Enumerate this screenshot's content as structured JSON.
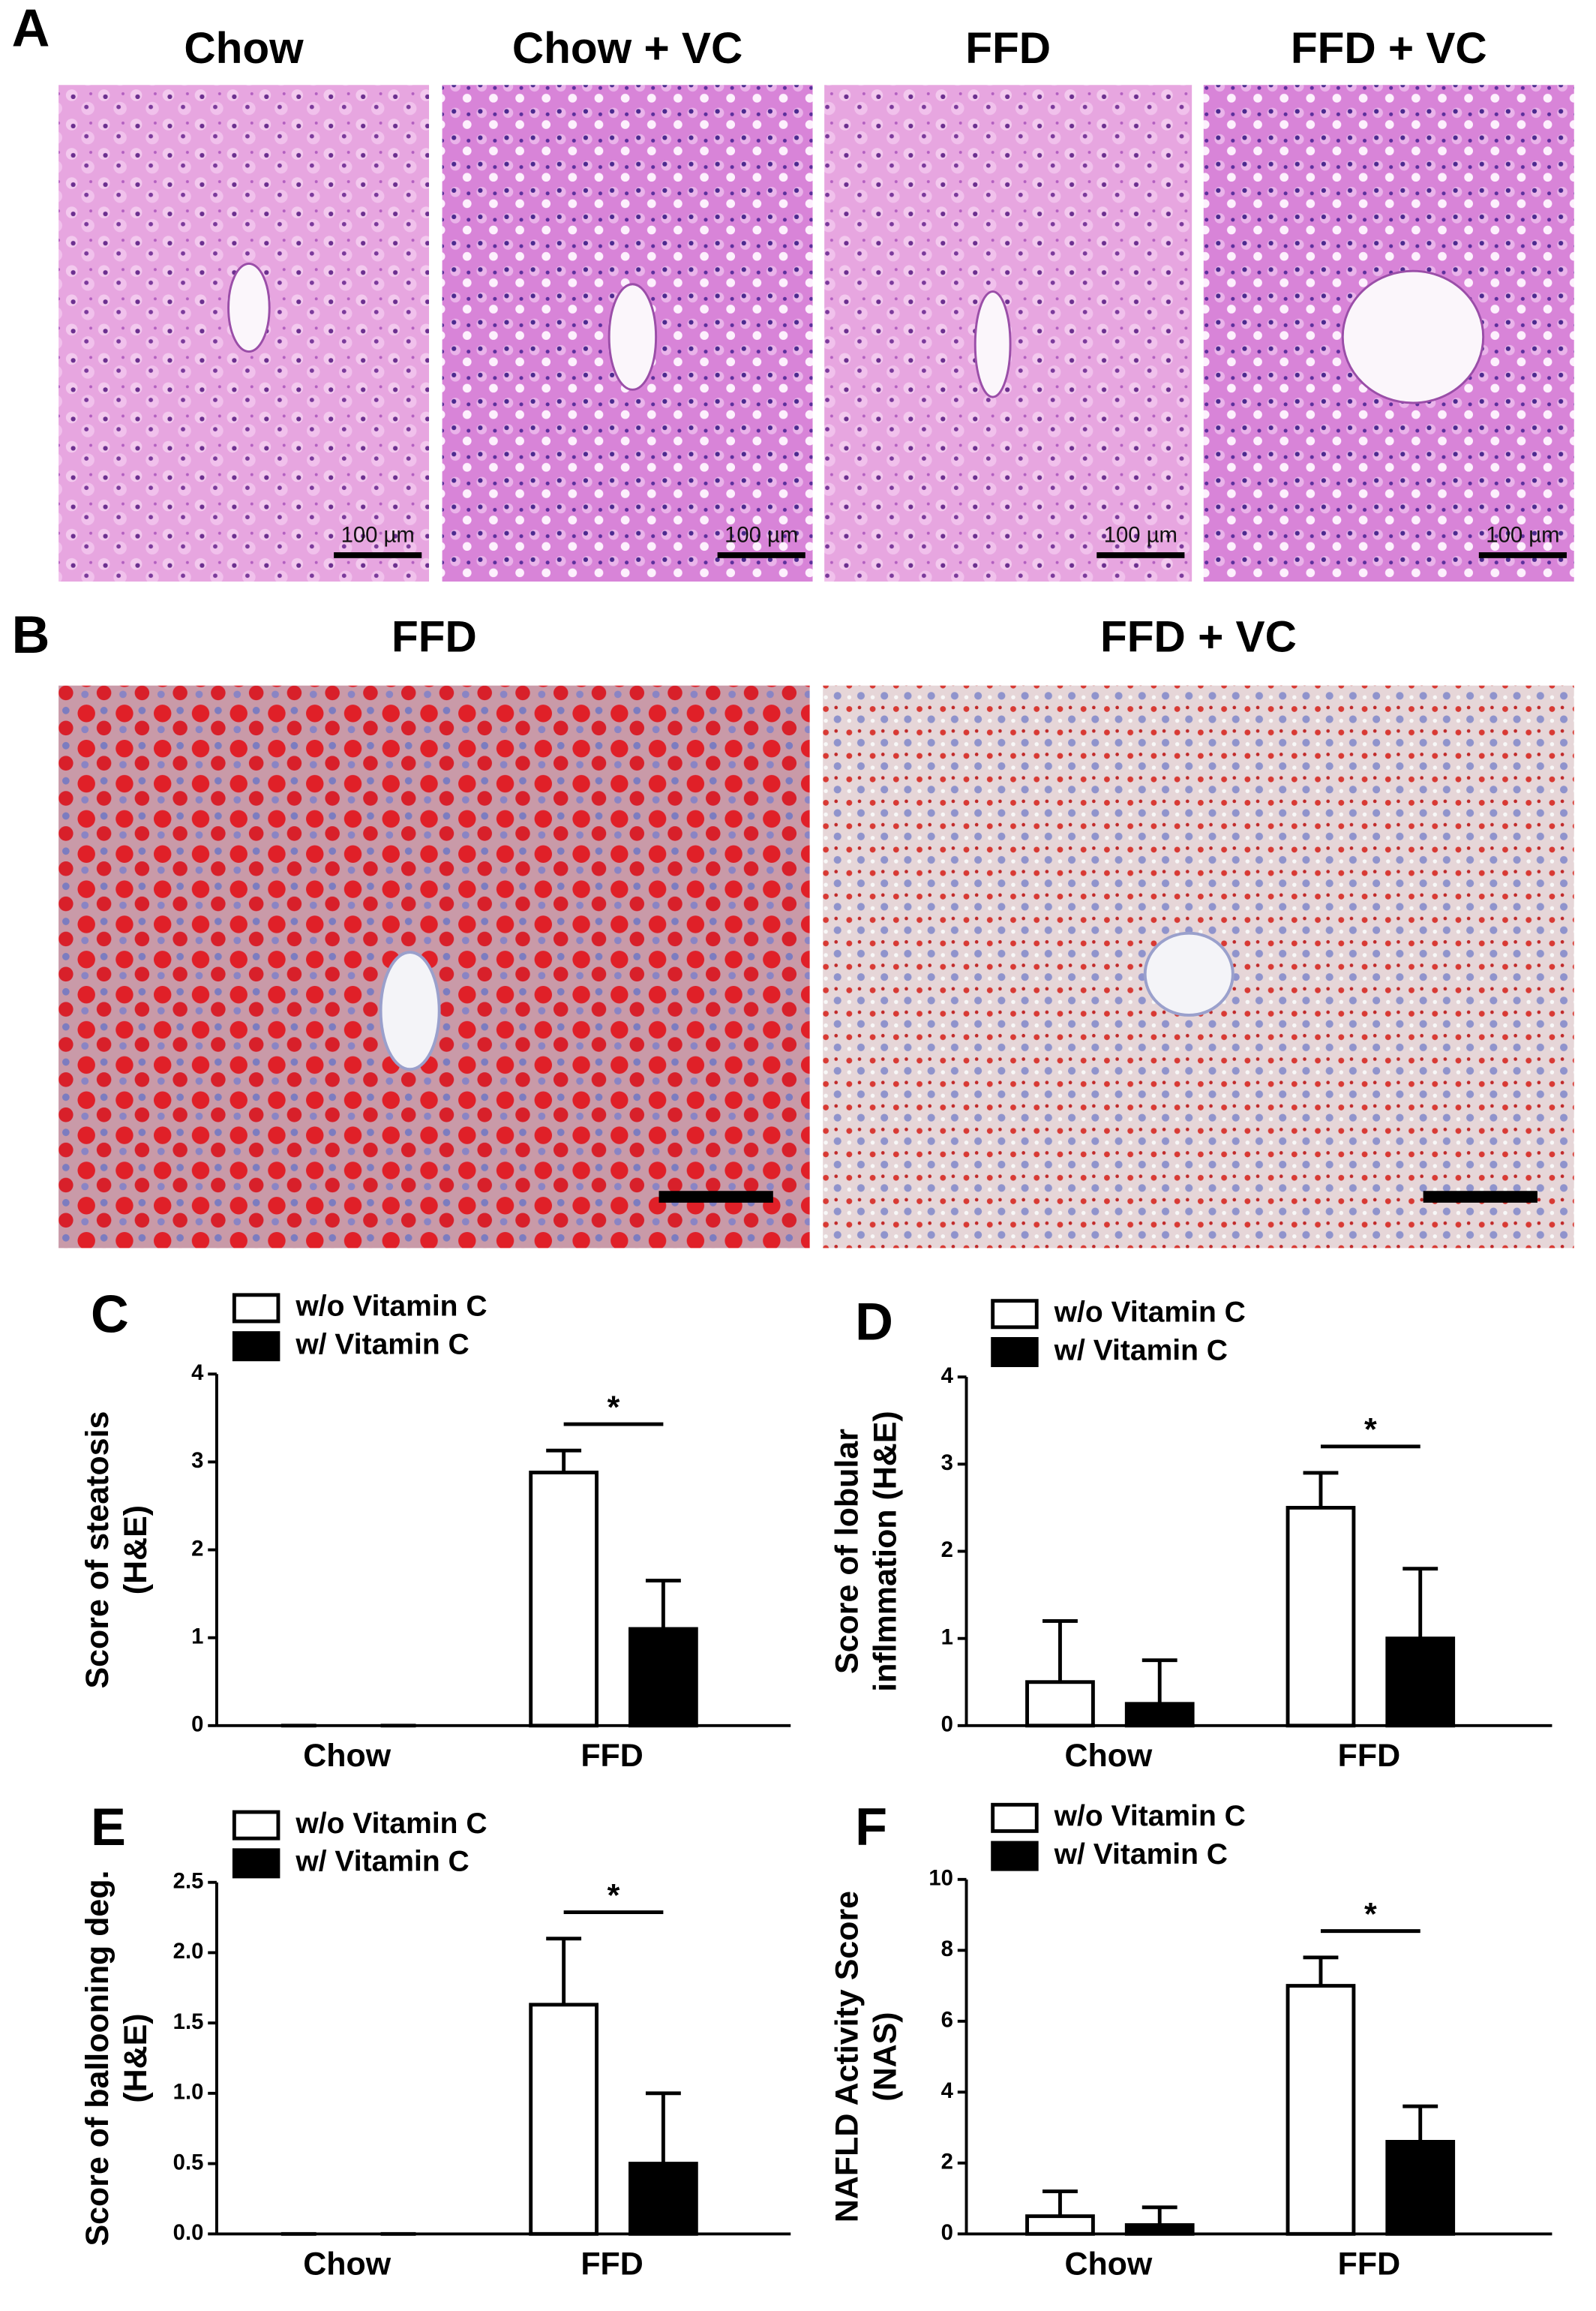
{
  "figure": {
    "panel_a": {
      "label": "A",
      "titles": [
        "Chow",
        "Chow + VC",
        "FFD",
        "FFD + VC"
      ],
      "scale_bar": "100 µm"
    },
    "panel_b": {
      "label": "B",
      "titles": [
        "FFD",
        "FFD + VC"
      ]
    }
  },
  "chart_data": [
    {
      "type": "bar",
      "panel": "C",
      "ylabel": [
        "Score of steatosis",
        "(H&E)"
      ],
      "categories": [
        "Chow",
        "FFD"
      ],
      "series": [
        {
          "name": "w/o Vitamin C",
          "color": "#ffffff",
          "values": [
            0,
            2.88
          ],
          "errors": [
            0,
            0.25
          ]
        },
        {
          "name": "w/ Vitamin C",
          "color": "#000000",
          "values": [
            0,
            1.1
          ],
          "errors": [
            0,
            0.55
          ]
        }
      ],
      "ylim": [
        0,
        4
      ],
      "yticks": [
        0,
        1,
        2,
        3,
        4
      ],
      "significance": "*"
    },
    {
      "type": "bar",
      "panel": "D",
      "ylabel": [
        "Score of lobular",
        "inflmmation (H&E)"
      ],
      "categories": [
        "Chow",
        "FFD"
      ],
      "series": [
        {
          "name": "w/o Vitamin C",
          "color": "#ffffff",
          "values": [
            0.5,
            2.5
          ],
          "errors": [
            0.7,
            0.4
          ]
        },
        {
          "name": "w/ Vitamin C",
          "color": "#000000",
          "values": [
            0.25,
            1.0
          ],
          "errors": [
            0.5,
            0.8
          ]
        }
      ],
      "ylim": [
        0,
        4
      ],
      "yticks": [
        0,
        1,
        2,
        3,
        4
      ],
      "significance": "*"
    },
    {
      "type": "bar",
      "panel": "E",
      "ylabel": [
        "Score of ballooning deg.",
        "(H&E)"
      ],
      "categories": [
        "Chow",
        "FFD"
      ],
      "series": [
        {
          "name": "w/o Vitamin C",
          "color": "#ffffff",
          "values": [
            0,
            1.63
          ],
          "errors": [
            0,
            0.47
          ]
        },
        {
          "name": "w/ Vitamin C",
          "color": "#000000",
          "values": [
            0,
            0.5
          ],
          "errors": [
            0,
            0.5
          ]
        }
      ],
      "ylim": [
        0,
        2.5
      ],
      "yticks": [
        {
          "value": 0,
          "label": "0.0"
        },
        0.5,
        {
          "value": 1,
          "label": "1.0"
        },
        1.5,
        {
          "value": 2,
          "label": "2.0"
        },
        2.5
      ],
      "significance": "*"
    },
    {
      "type": "bar",
      "panel": "F",
      "ylabel": [
        "NAFLD Activity Score",
        "(NAS)"
      ],
      "categories": [
        "Chow",
        "FFD"
      ],
      "series": [
        {
          "name": "w/o Vitamin C",
          "color": "#ffffff",
          "values": [
            0.5,
            7.0
          ],
          "errors": [
            0.7,
            0.8
          ]
        },
        {
          "name": "w/ Vitamin C",
          "color": "#000000",
          "values": [
            0.25,
            2.6
          ],
          "errors": [
            0.5,
            1.0
          ]
        }
      ],
      "ylim": [
        0,
        10
      ],
      "yticks": [
        0,
        2,
        4,
        6,
        8,
        10
      ],
      "significance": "*"
    }
  ]
}
